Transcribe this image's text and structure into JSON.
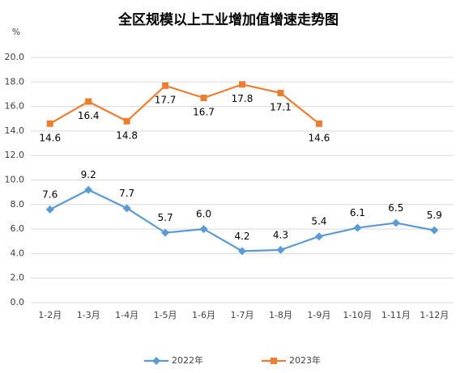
{
  "chart_data": {
    "type": "line",
    "title": "全区规模以上工业增加值增速走势图",
    "y_unit": "%",
    "categories": [
      "1-2月",
      "1-3月",
      "1-4月",
      "1-5月",
      "1-6月",
      "1-7月",
      "1-8月",
      "1-9月",
      "1-10月",
      "1-11月",
      "1-12月"
    ],
    "series": [
      {
        "name": "2022年",
        "color": "#5b9bd5",
        "marker": "diamond",
        "values": [
          7.6,
          9.2,
          7.7,
          5.7,
          6.0,
          4.2,
          4.3,
          5.4,
          6.1,
          6.5,
          5.9
        ],
        "value_labels": [
          "7.6",
          "9.2",
          "7.7",
          "5.7",
          "6.0",
          "4.2",
          "4.3",
          "5.4",
          "6.1",
          "6.5",
          "5.9"
        ]
      },
      {
        "name": "2023年",
        "color": "#ed7d31",
        "marker": "square",
        "values": [
          14.6,
          16.4,
          14.8,
          17.7,
          16.7,
          17.8,
          17.1,
          14.6,
          null,
          null,
          null
        ],
        "value_labels": [
          "14.6",
          "16.4",
          "14.8",
          "17.7",
          "16.7",
          "17.8",
          "17.1",
          "14.6",
          null,
          null,
          null
        ]
      }
    ],
    "ylim": [
      0,
      20
    ],
    "yticks": [
      {
        "value": 0,
        "label": "0.0"
      },
      {
        "value": 2,
        "label": "2.0"
      },
      {
        "value": 4,
        "label": "4.0"
      },
      {
        "value": 6,
        "label": "6.0"
      },
      {
        "value": 8,
        "label": "8.0"
      },
      {
        "value": 10,
        "label": "10.0"
      },
      {
        "value": 12,
        "label": "12.0"
      },
      {
        "value": 14,
        "label": "14.0"
      },
      {
        "value": 16,
        "label": "16.0"
      },
      {
        "value": 18,
        "label": "18.0"
      },
      {
        "value": 20,
        "label": "20.0"
      }
    ],
    "grid": true,
    "legend": "bottom"
  }
}
